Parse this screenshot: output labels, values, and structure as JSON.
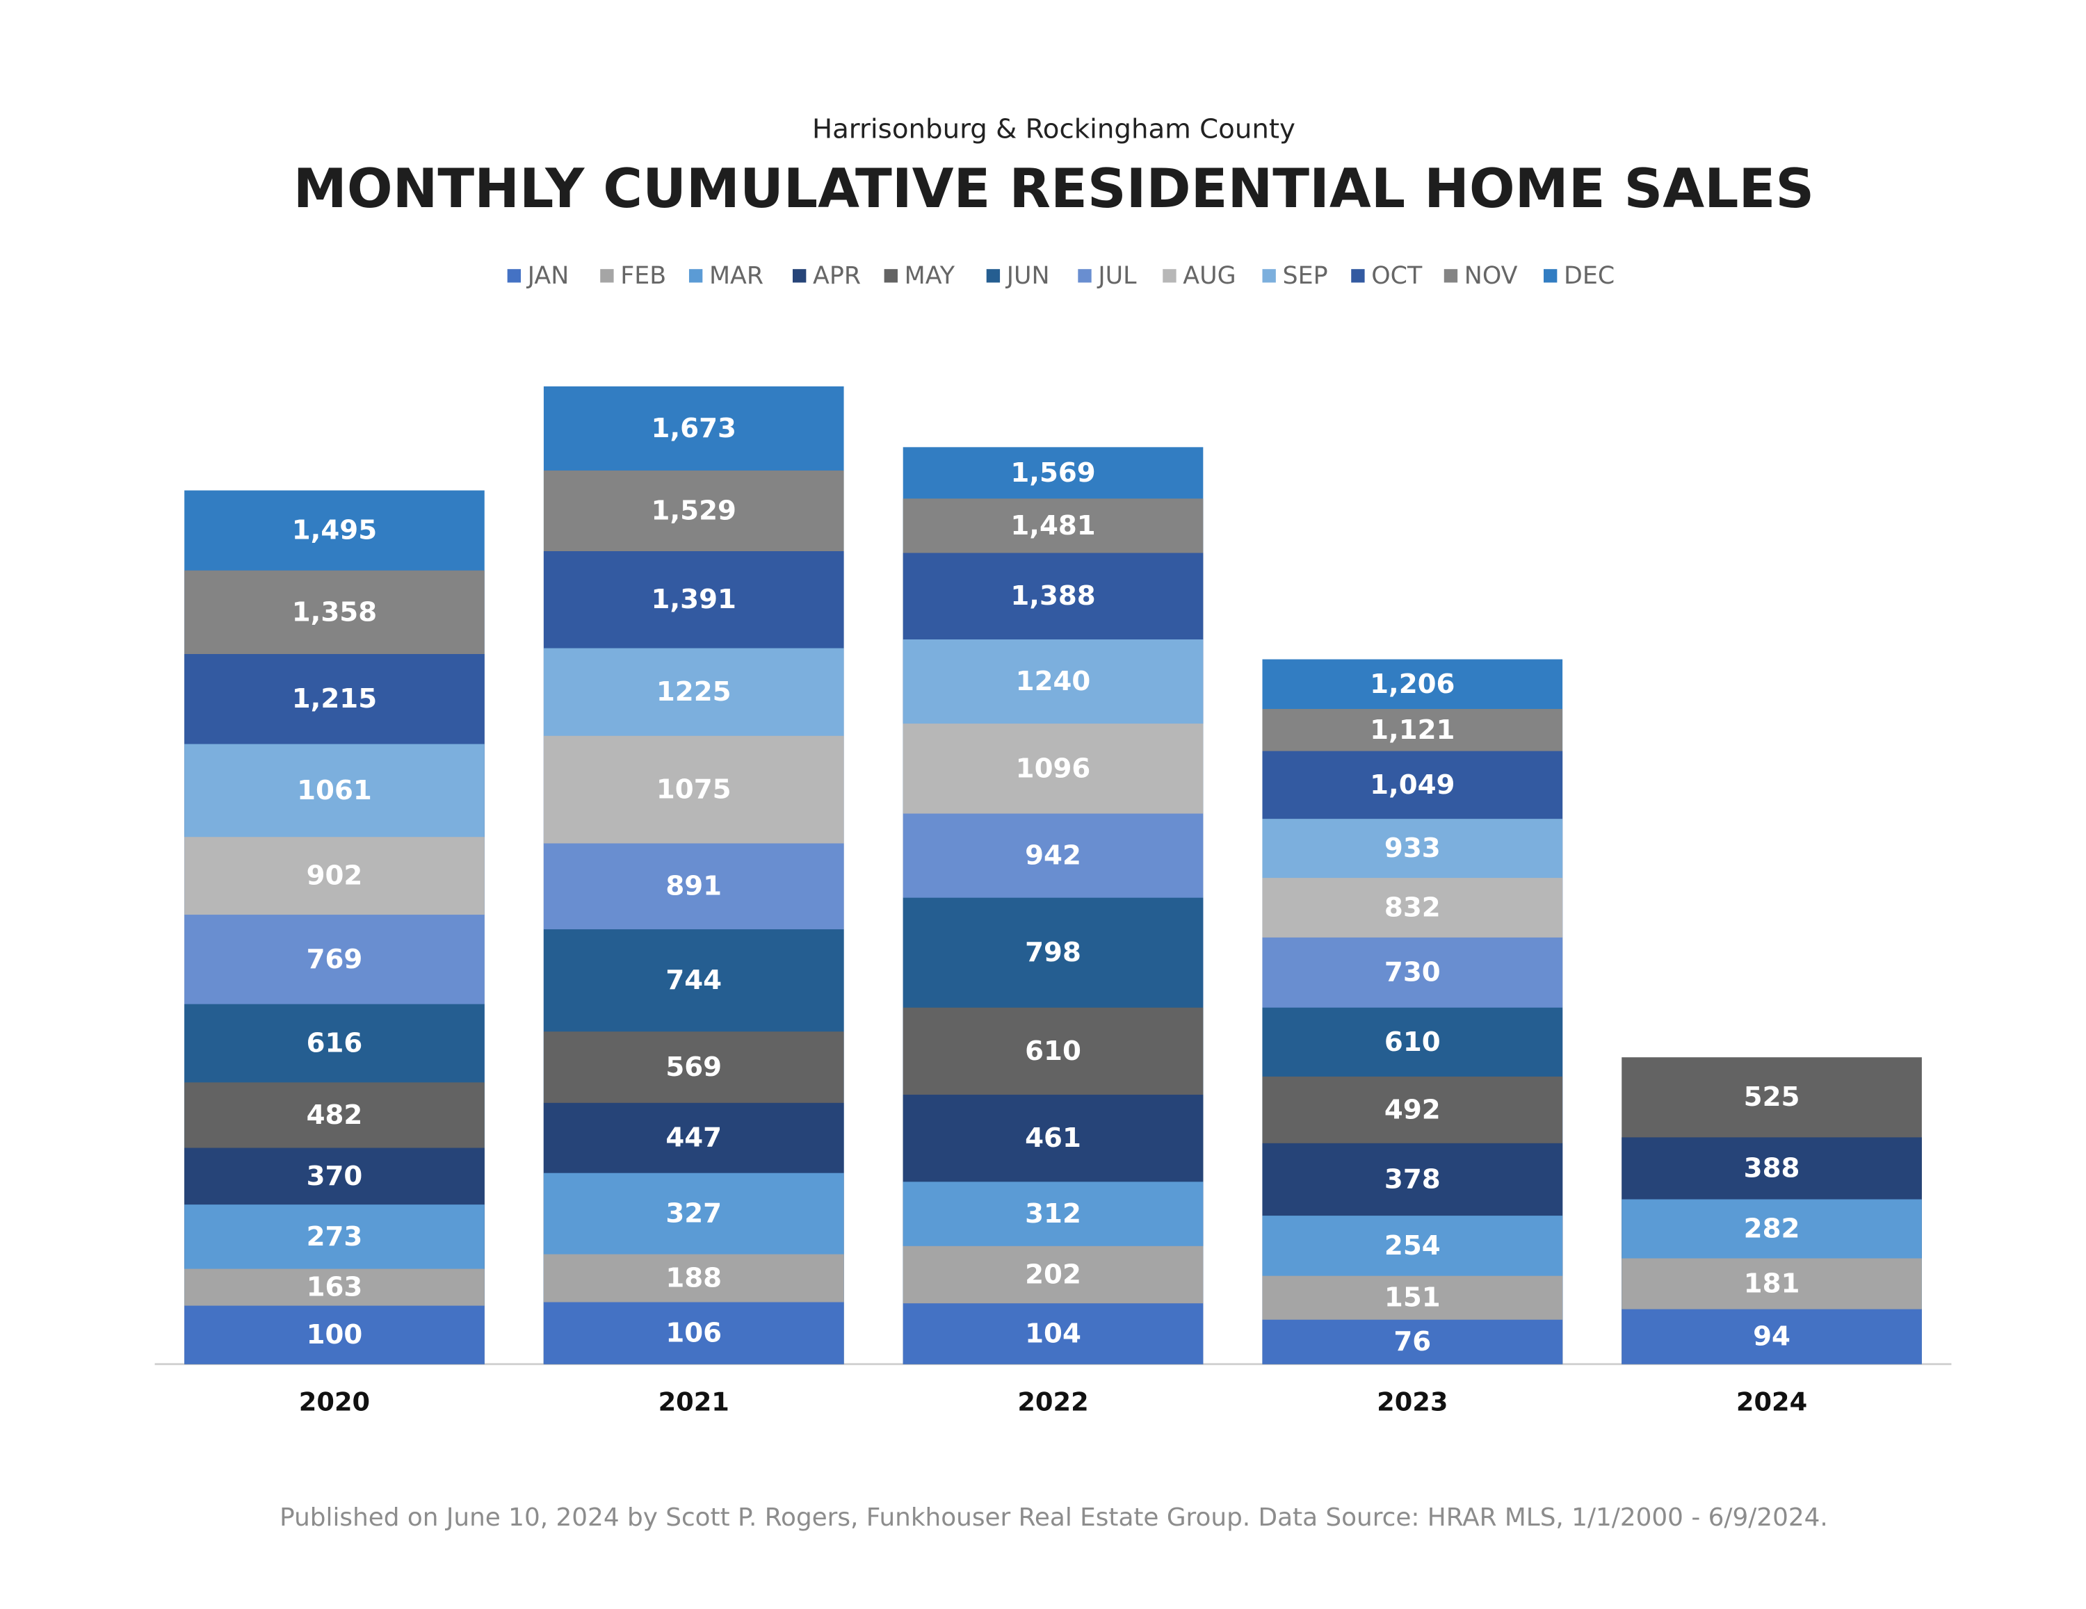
{
  "chart_data": {
    "type": "bar",
    "subtitle": "Harrisonburg & Rockingham County",
    "title": "MONTHLY CUMULATIVE RESIDENTIAL HOME SALES",
    "footnote": "Published on June 10, 2024 by Scott P. Rogers, Funkhouser Real Estate Group. Data Source: HRAR MLS, 1/1/2000 - 6/9/2024.",
    "categories": [
      "2020",
      "2021",
      "2022",
      "2023",
      "2024"
    ],
    "ylim": [
      0,
      1800
    ],
    "legend": "top",
    "series": [
      {
        "name": "JAN",
        "color": "#4472c4",
        "values": [
          100,
          106,
          104,
          76,
          94
        ]
      },
      {
        "name": "FEB",
        "color": "#a5a5a5",
        "values": [
          163,
          188,
          202,
          151,
          181
        ]
      },
      {
        "name": "MAR",
        "color": "#5b9bd5",
        "values": [
          273,
          327,
          312,
          254,
          282
        ]
      },
      {
        "name": "APR",
        "color": "#264478",
        "values": [
          370,
          447,
          461,
          378,
          388
        ]
      },
      {
        "name": "MAY",
        "color": "#636363",
        "values": [
          482,
          569,
          610,
          492,
          525
        ]
      },
      {
        "name": "JUN",
        "color": "#255e91",
        "values": [
          616,
          744,
          798,
          610,
          null
        ]
      },
      {
        "name": "JUL",
        "color": "#698ed0",
        "values": [
          769,
          891,
          942,
          730,
          null
        ]
      },
      {
        "name": "AUG",
        "color": "#b7b7b7",
        "values": [
          902,
          1075,
          1096,
          832,
          null
        ]
      },
      {
        "name": "SEP",
        "color": "#7cafdd",
        "values": [
          1061,
          1225,
          1240,
          933,
          null
        ]
      },
      {
        "name": "OCT",
        "color": "#335aa1",
        "values": [
          1215,
          1391,
          1388,
          1049,
          null
        ],
        "value_labels": [
          "1,215",
          "1,391",
          "1,388",
          "1,049",
          null
        ]
      },
      {
        "name": "NOV",
        "color": "#848484",
        "values": [
          1358,
          1529,
          1481,
          1121,
          null
        ],
        "value_labels": [
          "1,358",
          "1,529",
          "1,481",
          "1,121",
          null
        ]
      },
      {
        "name": "DEC",
        "color": "#327dc2",
        "values": [
          1495,
          1673,
          1569,
          1206,
          null
        ],
        "value_labels": [
          "1,495",
          "1,673",
          "1,569",
          "1,206",
          null
        ]
      }
    ]
  }
}
